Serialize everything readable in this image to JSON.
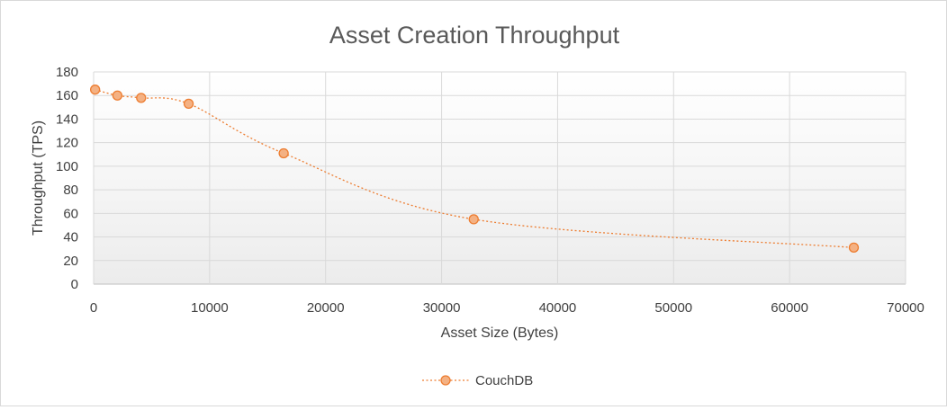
{
  "chart_data": {
    "type": "scatter",
    "title": "Asset Creation Throughput",
    "xlabel": "Asset Size (Bytes)",
    "ylabel": "Throughput (TPS)",
    "xlim": [
      0,
      70000
    ],
    "ylim": [
      0,
      180
    ],
    "x_ticks": [
      "0",
      "10000",
      "20000",
      "30000",
      "40000",
      "50000",
      "60000",
      "70000"
    ],
    "y_ticks": [
      "0",
      "20",
      "40",
      "60",
      "80",
      "100",
      "120",
      "140",
      "160",
      "180"
    ],
    "grid": true,
    "legend_position": "bottom",
    "series": [
      {
        "name": "CouchDB",
        "line_style": "dotted-smooth",
        "color": "#ED7D31",
        "marker_fill": "#F4B183",
        "x": [
          128,
          2048,
          4096,
          8192,
          16384,
          32768,
          65536
        ],
        "y": [
          165,
          160,
          158,
          153,
          111,
          55,
          31
        ]
      }
    ]
  }
}
